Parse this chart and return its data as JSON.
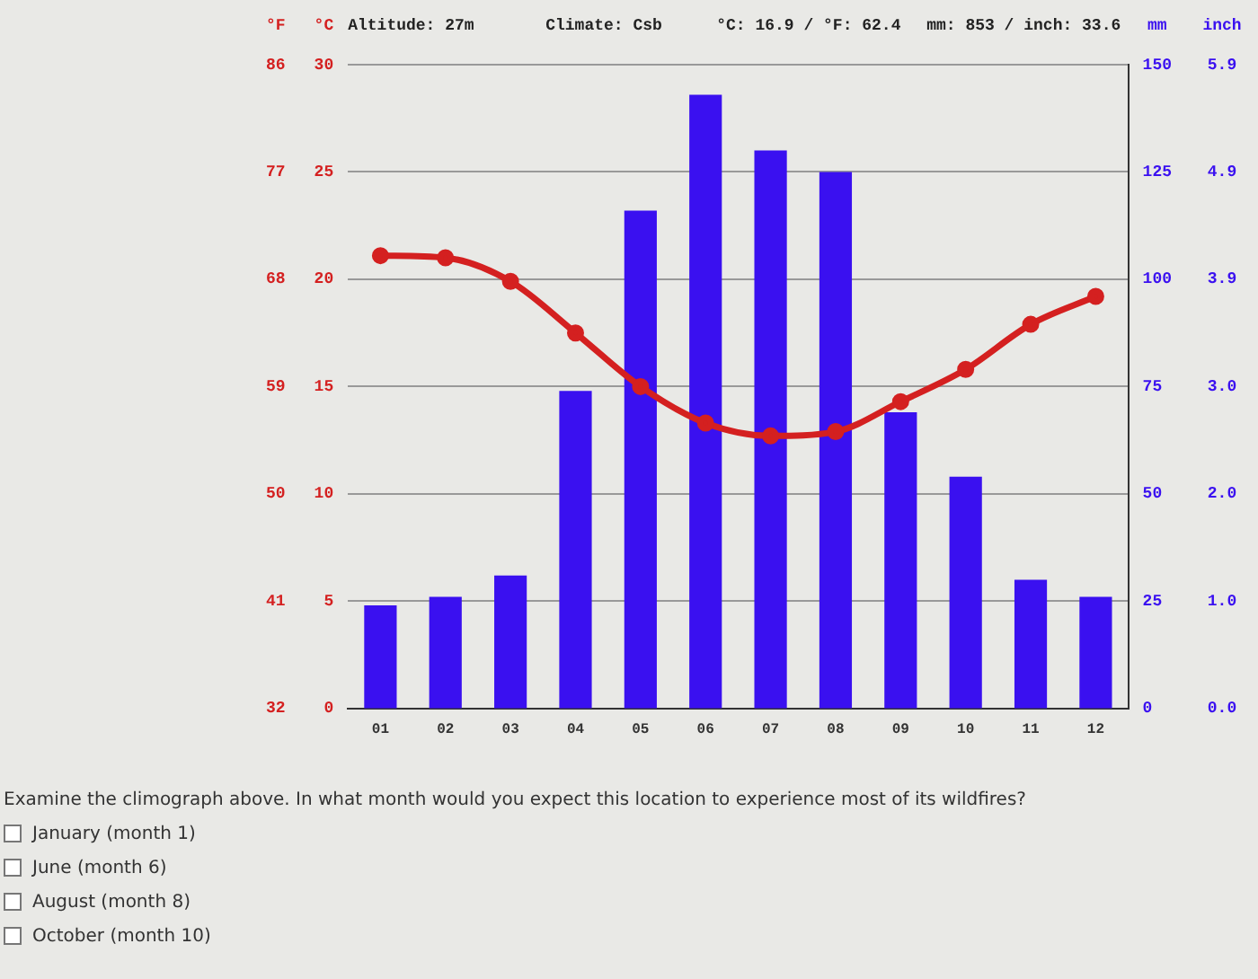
{
  "chart_data": {
    "type": "bar",
    "categories": [
      "01",
      "02",
      "03",
      "04",
      "05",
      "06",
      "07",
      "08",
      "09",
      "10",
      "11",
      "12"
    ],
    "series": [
      {
        "axis": "y2",
        "color": "#3a10f0",
        "values": [
          24,
          26,
          31,
          74,
          116,
          143,
          130,
          125,
          69,
          54,
          30,
          26
        ]
      },
      {
        "type": "line",
        "axis": "y",
        "color": "#d42020",
        "marker": "circle",
        "line_style": "solid",
        "values": [
          21.1,
          21.0,
          19.9,
          17.5,
          15.0,
          13.3,
          12.7,
          12.9,
          14.3,
          15.8,
          17.9,
          19.2
        ]
      }
    ],
    "ylabel": "°C",
    "ylim": [
      0,
      30
    ],
    "yticks": [
      0,
      5,
      10,
      15,
      20,
      25,
      30
    ],
    "y3label": "°F",
    "y3lim": [
      32,
      86
    ],
    "y3ticks": [
      32,
      41,
      50,
      59,
      68,
      77,
      86
    ],
    "y2label": "mm",
    "y2lim": [
      0,
      150
    ],
    "y2ticks": [
      0,
      25,
      50,
      75,
      100,
      125,
      150
    ],
    "grid": "y",
    "legend": false,
    "annotations": [
      "Altitude: 27m",
      "Climate: Csb",
      "°C: 16.9 / °F: 62.4",
      "mm: 853 / inch: 33.6",
      "Examine the climograph above. In what month would you expect this location to experience most of its wildfires?",
      "January (month 1)",
      "June (month 6)",
      "August (month 8)",
      "October (month 10)",
      "inch",
      "0.0",
      "1.0",
      "2.0",
      "3.0",
      "3.9",
      "4.9",
      "5.9"
    ]
  }
}
